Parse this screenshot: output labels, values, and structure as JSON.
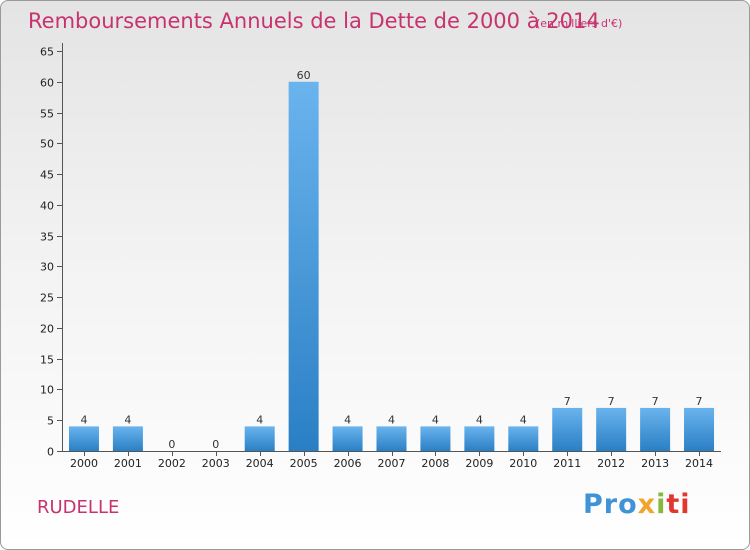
{
  "title": "Remboursements Annuels de la Dette de 2000 à 2014",
  "subtitle": "(en milliers d'€)",
  "commune": "RUDELLE",
  "logo": {
    "p1": "Pro",
    "p2": "x",
    "p3": "i",
    "p4": "ti"
  },
  "colors": {
    "title": "#c8326e",
    "bar_light": "#6ab4ee",
    "bar_dark": "#2a7fc4"
  },
  "chart_data": {
    "type": "bar",
    "title": "Remboursements Annuels de la Dette de 2000 à 2014",
    "categories": [
      "2000",
      "2001",
      "2002",
      "2003",
      "2004",
      "2005",
      "2006",
      "2007",
      "2008",
      "2009",
      "2010",
      "2011",
      "2012",
      "2013",
      "2014"
    ],
    "values": [
      4,
      4,
      0,
      0,
      4,
      60,
      4,
      4,
      4,
      4,
      4,
      7,
      7,
      7,
      7
    ],
    "value_labels": [
      "4",
      "4",
      "0",
      "0",
      "4",
      "60",
      "4",
      "4",
      "4",
      "4",
      "4",
      "7",
      "7",
      "7",
      "7"
    ],
    "ylim": [
      0,
      65
    ],
    "yticks": [
      0,
      5,
      10,
      15,
      20,
      25,
      30,
      35,
      40,
      45,
      50,
      55,
      60,
      65
    ],
    "grid": false
  }
}
